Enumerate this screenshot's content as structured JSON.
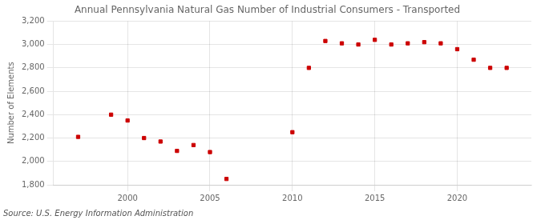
{
  "chart_data": {
    "type": "scatter",
    "title": "Annual Pennsylvania Natural Gas Number of Industrial Consumers - Transported",
    "ylabel": "Number of Elements",
    "annotations": [
      "Source: U.S. Energy Information Administration"
    ],
    "x": [
      1997,
      1999,
      2000,
      2001,
      2002,
      2003,
      2004,
      2005,
      2006,
      2010,
      2011,
      2012,
      2013,
      2014,
      2015,
      2016,
      2017,
      2018,
      2019,
      2020,
      2021,
      2022,
      2023
    ],
    "values": [
      2210,
      2400,
      2350,
      2200,
      2170,
      2090,
      2140,
      2080,
      1850,
      2250,
      2800,
      3030,
      3010,
      3000,
      3040,
      3000,
      3010,
      3020,
      3010,
      2960,
      2870,
      2800,
      2800
    ],
    "color": "#cc0000",
    "marker": "square",
    "xlim": [
      1995.5,
      2024.5
    ],
    "xticks": [
      2000,
      2005,
      2010,
      2015,
      2020
    ],
    "ylim": [
      1800,
      3200
    ],
    "yticks": [
      {
        "value": 1800,
        "label": "1,800"
      },
      {
        "value": 2000,
        "label": "2,000"
      },
      {
        "value": 2200,
        "label": "2,200"
      },
      {
        "value": 2400,
        "label": "2,400"
      },
      {
        "value": 2600,
        "label": "2,600"
      },
      {
        "value": 2800,
        "label": "2,800"
      },
      {
        "value": 3000,
        "label": "3,000"
      },
      {
        "value": 3200,
        "label": "3,200"
      }
    ],
    "grid": true
  }
}
